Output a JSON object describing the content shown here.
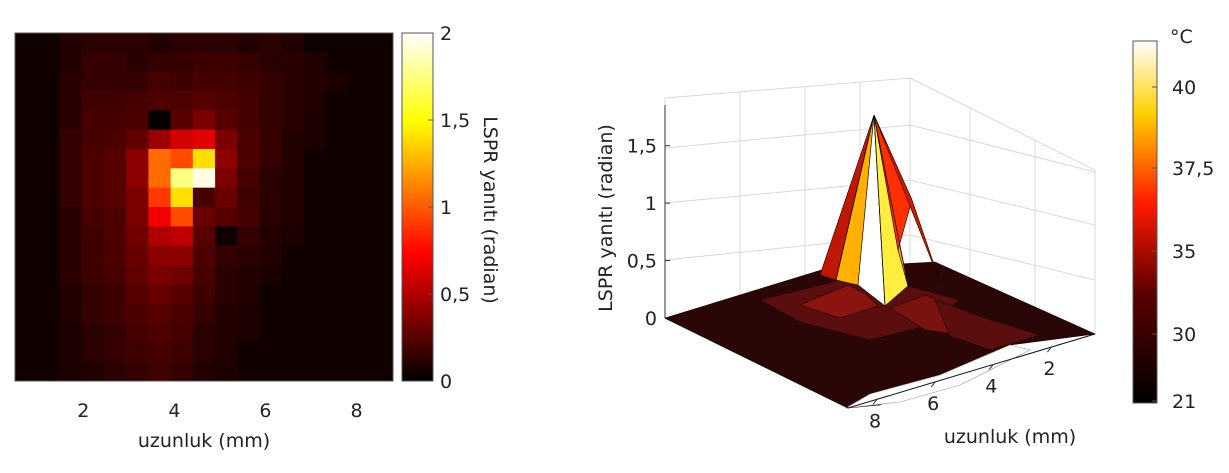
{
  "chart_data": [
    {
      "type": "heatmap",
      "xlabel": "uzunluk (mm)",
      "x_ticks": [
        "2",
        "4",
        "6",
        "8"
      ],
      "xlim": [
        0.5,
        8.8
      ],
      "colorbar": {
        "label": "LSPR yanıtı (radian)",
        "ticks": [
          "0",
          "0,5",
          "1",
          "1,5",
          "2"
        ],
        "range": [
          0,
          2
        ],
        "colormap": "hot"
      },
      "grid_values": [
        [
          0.05,
          0.05,
          0.1,
          0.12,
          0.12,
          0.12,
          0.1,
          0.12,
          0.12,
          0.12,
          0.1,
          0.12,
          0.1,
          0.05,
          0.05,
          0.05,
          0.05
        ],
        [
          0.05,
          0.05,
          0.1,
          0.15,
          0.15,
          0.12,
          0.15,
          0.15,
          0.18,
          0.18,
          0.15,
          0.12,
          0.12,
          0.1,
          0.05,
          0.05,
          0.05
        ],
        [
          0.05,
          0.05,
          0.12,
          0.15,
          0.15,
          0.15,
          0.2,
          0.18,
          0.2,
          0.2,
          0.18,
          0.15,
          0.12,
          0.1,
          0.08,
          0.05,
          0.05
        ],
        [
          0.05,
          0.05,
          0.12,
          0.18,
          0.18,
          0.2,
          0.22,
          0.22,
          0.25,
          0.22,
          0.2,
          0.15,
          0.12,
          0.1,
          0.05,
          0.05,
          0.05
        ],
        [
          0.05,
          0.05,
          0.12,
          0.2,
          0.2,
          0.22,
          0.02,
          0.25,
          0.35,
          0.25,
          0.2,
          0.15,
          0.12,
          0.08,
          0.05,
          0.05,
          0.05
        ],
        [
          0.05,
          0.05,
          0.15,
          0.2,
          0.22,
          0.28,
          0.45,
          0.6,
          0.65,
          0.35,
          0.22,
          0.15,
          0.1,
          0.08,
          0.05,
          0.05,
          0.05
        ],
        [
          0.05,
          0.05,
          0.15,
          0.22,
          0.25,
          0.4,
          1.05,
          0.95,
          1.4,
          0.4,
          0.22,
          0.15,
          0.1,
          0.05,
          0.05,
          0.05,
          0.05
        ],
        [
          0.05,
          0.05,
          0.15,
          0.22,
          0.25,
          0.4,
          1.05,
          1.75,
          1.95,
          0.35,
          0.2,
          0.12,
          0.1,
          0.05,
          0.05,
          0.05,
          0.05
        ],
        [
          0.05,
          0.05,
          0.15,
          0.22,
          0.25,
          0.35,
          0.9,
          1.4,
          0.2,
          0.3,
          0.18,
          0.12,
          0.1,
          0.05,
          0.05,
          0.05,
          0.05
        ],
        [
          0.05,
          0.05,
          0.12,
          0.2,
          0.22,
          0.35,
          0.7,
          0.95,
          0.3,
          0.25,
          0.2,
          0.12,
          0.1,
          0.05,
          0.05,
          0.05,
          0.05
        ],
        [
          0.05,
          0.05,
          0.12,
          0.18,
          0.22,
          0.32,
          0.5,
          0.55,
          0.25,
          0.05,
          0.15,
          0.1,
          0.08,
          0.05,
          0.05,
          0.05,
          0.05
        ],
        [
          0.05,
          0.05,
          0.12,
          0.18,
          0.22,
          0.3,
          0.4,
          0.4,
          0.22,
          0.15,
          0.12,
          0.1,
          0.05,
          0.05,
          0.05,
          0.05,
          0.05
        ],
        [
          0.05,
          0.05,
          0.12,
          0.18,
          0.2,
          0.28,
          0.35,
          0.32,
          0.2,
          0.12,
          0.1,
          0.08,
          0.05,
          0.05,
          0.05,
          0.05,
          0.05
        ],
        [
          0.05,
          0.05,
          0.1,
          0.15,
          0.18,
          0.25,
          0.3,
          0.25,
          0.18,
          0.12,
          0.1,
          0.05,
          0.05,
          0.05,
          0.05,
          0.05,
          0.05
        ],
        [
          0.05,
          0.05,
          0.1,
          0.15,
          0.18,
          0.22,
          0.25,
          0.22,
          0.15,
          0.1,
          0.08,
          0.05,
          0.05,
          0.05,
          0.05,
          0.05,
          0.05
        ],
        [
          0.05,
          0.05,
          0.08,
          0.12,
          0.15,
          0.2,
          0.22,
          0.2,
          0.12,
          0.1,
          0.08,
          0.05,
          0.05,
          0.05,
          0.05,
          0.05,
          0.05
        ],
        [
          0.05,
          0.05,
          0.08,
          0.12,
          0.15,
          0.18,
          0.2,
          0.18,
          0.12,
          0.1,
          0.05,
          0.05,
          0.05,
          0.05,
          0.05,
          0.05,
          0.05
        ],
        [
          0.05,
          0.05,
          0.08,
          0.1,
          0.12,
          0.15,
          0.18,
          0.15,
          0.1,
          0.08,
          0.05,
          0.05,
          0.05,
          0.05,
          0.05,
          0.05,
          0.05
        ]
      ]
    },
    {
      "type": "surface",
      "xlabel": "uzunluk (mm)",
      "ylabel": "LSPR yanıtı (radian)",
      "x_ticks": [
        "2",
        "4",
        "6",
        "8"
      ],
      "z_ticks": [
        "0",
        "0,5",
        "1",
        "1,5"
      ],
      "zlim": [
        0,
        1.8
      ],
      "peak_value": 1.75,
      "colorbar": {
        "unit": "°C",
        "ticks": [
          "21",
          "30",
          "35",
          "37,5",
          "40"
        ],
        "colormap": "hot"
      }
    }
  ]
}
